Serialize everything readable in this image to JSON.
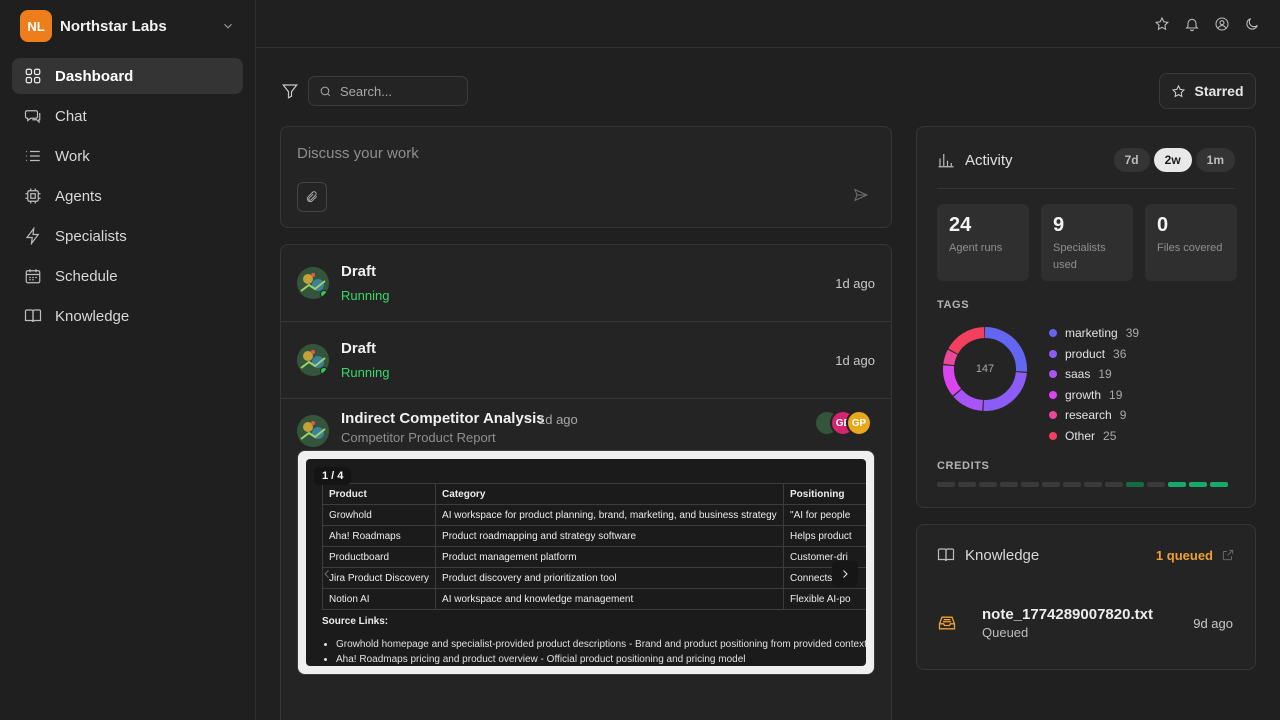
{
  "workspace": {
    "initials": "NL",
    "name": "Northstar Labs",
    "logo_color": "#ee7d1c"
  },
  "nav": [
    {
      "label": "Dashboard",
      "icon": "grid-icon",
      "active": true
    },
    {
      "label": "Chat",
      "icon": "chat-icon"
    },
    {
      "label": "Work",
      "icon": "list-icon"
    },
    {
      "label": "Agents",
      "icon": "chip-icon"
    },
    {
      "label": "Specialists",
      "icon": "lightning-icon"
    },
    {
      "label": "Schedule",
      "icon": "calendar-icon"
    },
    {
      "label": "Knowledge",
      "icon": "book-icon"
    }
  ],
  "topbar": {
    "icons": [
      "star-icon",
      "bell-icon",
      "user-circle-icon",
      "moon-icon"
    ]
  },
  "toolbar": {
    "search_placeholder": "Search...",
    "starred_label": "Starred"
  },
  "composer": {
    "placeholder": "Discuss your work"
  },
  "feed": {
    "rows": [
      {
        "title": "Draft",
        "status": "Running",
        "time": "1d ago"
      },
      {
        "title": "Draft",
        "status": "Running",
        "time": "1d ago"
      }
    ],
    "report": {
      "title": "Indirect Competitor Analysis",
      "time": "1d ago",
      "subtitle": "Competitor Product Report",
      "collaborators": [
        {
          "initials": "",
          "color": "#2d4a36"
        },
        {
          "initials": "GE",
          "color": "#d6246e"
        },
        {
          "initials": "GP",
          "color": "#e7a91a"
        }
      ],
      "page_indicator": "1 / 4",
      "table": {
        "headers": [
          "Product",
          "Category",
          "Positioning"
        ],
        "rows": [
          [
            "Growhold",
            "AI workspace for product planning, brand, marketing, and business strategy",
            "\"AI for people"
          ],
          [
            "Aha! Roadmaps",
            "Product roadmapping and strategy software",
            "Helps product"
          ],
          [
            "Productboard",
            "Product management platform",
            "Customer-dri"
          ],
          [
            "Jira Product Discovery",
            "Product discovery and prioritization tool",
            "Connects pro"
          ],
          [
            "Notion AI",
            "AI workspace and knowledge management",
            "Flexible AI-po"
          ]
        ]
      },
      "source_title": "Source Links:",
      "sources": [
        "Growhold homepage and specialist-provided product descriptions - Brand and product positioning from provided context",
        "Aha! Roadmaps pricing and product overview - Official product positioning and pricing model"
      ]
    }
  },
  "activity": {
    "title": "Activity",
    "ranges": [
      {
        "label": "7d",
        "active": false
      },
      {
        "label": "2w",
        "active": true
      },
      {
        "label": "1m",
        "active": false
      }
    ],
    "stats": [
      {
        "value": "24",
        "label": "Agent runs"
      },
      {
        "value": "9",
        "label": "Specialists used"
      },
      {
        "value": "0",
        "label": "Files covered"
      }
    ],
    "tags_label": "TAGS",
    "tags_total": "147",
    "credits_label": "CREDITS",
    "credits_levels": [
      0,
      0,
      0,
      0,
      0,
      0,
      0,
      0,
      0,
      1,
      0,
      2,
      2,
      2
    ]
  },
  "chart_data": {
    "type": "pie",
    "title": "TAGS",
    "center_label": "147",
    "categories": [
      "marketing",
      "product",
      "saas",
      "growth",
      "research",
      "Other"
    ],
    "values": [
      39,
      36,
      19,
      19,
      9,
      25
    ],
    "colors": [
      "#6366f1",
      "#8b5cf6",
      "#a855f7",
      "#d946ef",
      "#ec4899",
      "#f43f5e"
    ]
  },
  "knowledge": {
    "title": "Knowledge",
    "queued_label": "1 queued",
    "file": {
      "name": "note_1774289007820.txt",
      "status": "Queued",
      "time": "9d ago"
    }
  }
}
